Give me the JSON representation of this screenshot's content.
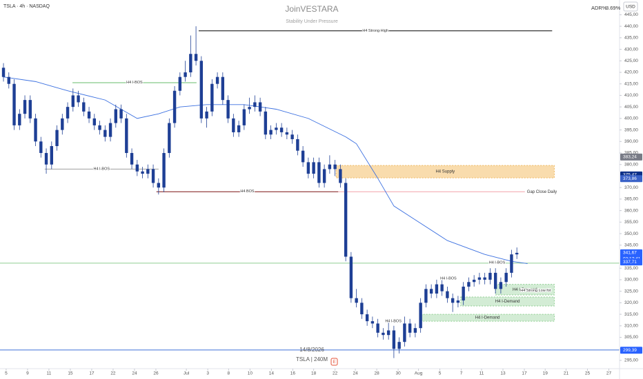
{
  "header": {
    "symbol": "TSLA · 4h · NASDAQ",
    "brand": "JoinVESTARA",
    "tagline": "Stability Under Pressure",
    "adr_label": "ADR%",
    "adr_value": "3.69%",
    "currency": "USD"
  },
  "footer": {
    "date": "14/8/2026",
    "caption": "TSLA | 240M",
    "event_marker": "E"
  },
  "chart_data": {
    "type": "candlestick",
    "up_color": "#1e3f95",
    "down_color": "#1e3f95",
    "open": [
      422,
      418,
      415,
      397,
      402,
      408,
      400,
      390,
      385,
      380,
      388,
      395,
      400,
      405,
      410,
      407,
      403,
      400,
      397,
      395,
      392,
      398,
      404,
      400,
      385,
      380,
      377,
      376,
      378,
      372,
      370,
      385,
      398,
      412,
      418,
      420,
      428,
      425,
      400,
      403,
      415,
      418,
      408,
      400,
      394,
      397,
      404,
      405,
      407,
      403,
      393,
      395,
      396,
      394,
      393,
      391,
      386,
      381,
      376,
      381,
      372,
      378,
      380,
      378,
      372,
      340,
      322,
      320,
      315,
      312,
      311,
      307,
      306,
      308,
      300,
      303,
      311,
      307,
      309,
      320,
      326,
      324,
      328,
      325,
      322,
      320,
      321,
      327,
      329,
      330,
      331,
      330,
      333,
      326,
      329,
      333,
      341
    ],
    "high": [
      424,
      420,
      417,
      404,
      410,
      410,
      402,
      392,
      387,
      390,
      397,
      402,
      407,
      413,
      412,
      409,
      405,
      402,
      399,
      397,
      400,
      406,
      406,
      402,
      387,
      382,
      379,
      380,
      380,
      374,
      387,
      400,
      414,
      420,
      425,
      436,
      440,
      427,
      405,
      417,
      420,
      420,
      410,
      402,
      399,
      406,
      409,
      410,
      409,
      405,
      397,
      398,
      398,
      396,
      395,
      393,
      388,
      383,
      383,
      383,
      380,
      384,
      382,
      380,
      374,
      342,
      326,
      322,
      317,
      314,
      313,
      309,
      312,
      310,
      305,
      314,
      313,
      311,
      322,
      328,
      328,
      330,
      330,
      327,
      324,
      323,
      329,
      331,
      332,
      333,
      333,
      335,
      335,
      331,
      335,
      343,
      344
    ],
    "low": [
      416,
      413,
      395,
      395,
      400,
      398,
      388,
      383,
      376,
      378,
      386,
      393,
      398,
      403,
      405,
      401,
      398,
      395,
      393,
      390,
      390,
      396,
      398,
      383,
      378,
      375,
      374,
      374,
      370,
      367,
      368,
      383,
      396,
      410,
      416,
      418,
      423,
      398,
      396,
      401,
      413,
      406,
      398,
      392,
      392,
      395,
      402,
      403,
      401,
      391,
      391,
      393,
      392,
      391,
      389,
      384,
      379,
      374,
      374,
      370,
      370,
      376,
      375,
      370,
      338,
      320,
      318,
      313,
      310,
      309,
      305,
      304,
      304,
      296,
      298,
      301,
      305,
      305,
      307,
      318,
      322,
      322,
      323,
      320,
      316,
      318,
      319,
      325,
      327,
      328,
      328,
      328,
      324,
      324,
      327,
      331,
      339
    ],
    "close": [
      418,
      415,
      397,
      402,
      408,
      400,
      390,
      385,
      380,
      388,
      395,
      400,
      405,
      410,
      407,
      403,
      400,
      397,
      395,
      392,
      398,
      404,
      400,
      385,
      380,
      377,
      376,
      378,
      372,
      370,
      385,
      398,
      412,
      418,
      420,
      428,
      425,
      400,
      403,
      415,
      418,
      408,
      400,
      394,
      397,
      404,
      405,
      407,
      403,
      393,
      395,
      396,
      394,
      393,
      391,
      386,
      381,
      376,
      381,
      372,
      378,
      380,
      378,
      372,
      340,
      322,
      320,
      315,
      312,
      311,
      307,
      306,
      308,
      300,
      303,
      311,
      307,
      309,
      320,
      326,
      324,
      328,
      325,
      322,
      320,
      321,
      327,
      329,
      330,
      331,
      330,
      333,
      326,
      329,
      333,
      341,
      341.67
    ],
    "ylim": [
      291.4,
      451.4
    ],
    "yticks": [
      {
        "value": 295,
        "label": "295,00"
      },
      {
        "value": 300,
        "label": "300,00"
      },
      {
        "value": 305,
        "label": "305,00"
      },
      {
        "value": 310,
        "label": "310,00"
      },
      {
        "value": 315,
        "label": "315,00"
      },
      {
        "value": 320,
        "label": "320,00"
      },
      {
        "value": 325,
        "label": "325,00"
      },
      {
        "value": 330,
        "label": "330,00"
      },
      {
        "value": 335,
        "label": "335,00"
      },
      {
        "value": 345,
        "label": "345,00"
      },
      {
        "value": 350,
        "label": "350,00"
      },
      {
        "value": 355,
        "label": "355,00"
      },
      {
        "value": 360,
        "label": "360,00"
      },
      {
        "value": 365,
        "label": "365,00"
      },
      {
        "value": 370,
        "label": "370,00"
      },
      {
        "value": 380,
        "label": "380,00"
      },
      {
        "value": 385,
        "label": "385,00"
      },
      {
        "value": 390,
        "label": "390,00"
      },
      {
        "value": 395,
        "label": "395,00"
      },
      {
        "value": 400,
        "label": "400,00"
      },
      {
        "value": 405,
        "label": "405,00"
      },
      {
        "value": 410,
        "label": "410,00"
      },
      {
        "value": 415,
        "label": "415,00"
      },
      {
        "value": 420,
        "label": "420,00"
      },
      {
        "value": 425,
        "label": "425,00"
      },
      {
        "value": 430,
        "label": "430,00"
      },
      {
        "value": 435,
        "label": "435,00"
      },
      {
        "value": 440,
        "label": "440,00"
      },
      {
        "value": 445,
        "label": "445,00"
      }
    ],
    "xlim": [
      -0.65,
      115.2
    ],
    "xticks": [
      {
        "value": 0.5,
        "label": "5"
      },
      {
        "value": 4.5,
        "label": "9"
      },
      {
        "value": 8.5,
        "label": "11"
      },
      {
        "value": 12.5,
        "label": "15"
      },
      {
        "value": 16.5,
        "label": "17"
      },
      {
        "value": 20.5,
        "label": "22"
      },
      {
        "value": 24.5,
        "label": "24"
      },
      {
        "value": 28.5,
        "label": "26"
      },
      {
        "value": 34.2,
        "label": "Jul"
      },
      {
        "value": 38.2,
        "label": "3"
      },
      {
        "value": 42.1,
        "label": "8"
      },
      {
        "value": 46.1,
        "label": "10"
      },
      {
        "value": 50.1,
        "label": "14"
      },
      {
        "value": 54.1,
        "label": "16"
      },
      {
        "value": 58,
        "label": "18"
      },
      {
        "value": 62,
        "label": "22"
      },
      {
        "value": 65.8,
        "label": "24"
      },
      {
        "value": 69.8,
        "label": "28"
      },
      {
        "value": 73.8,
        "label": "30"
      },
      {
        "value": 77.6,
        "label": "Aug"
      },
      {
        "value": 81.6,
        "label": "5"
      },
      {
        "value": 85.6,
        "label": "7"
      },
      {
        "value": 89.4,
        "label": "11"
      },
      {
        "value": 93.4,
        "label": "13"
      },
      {
        "value": 97.4,
        "label": "17"
      },
      {
        "value": 101.3,
        "label": "19"
      },
      {
        "value": 105.2,
        "label": "21"
      },
      {
        "value": 109.2,
        "label": "25"
      },
      {
        "value": 113.2,
        "label": "27"
      }
    ],
    "overlay_line": {
      "color": "#3a6fe0",
      "x": [
        0,
        6,
        12,
        19,
        25,
        29,
        33,
        38,
        45,
        51,
        57,
        64,
        66,
        70,
        73,
        77,
        83,
        90,
        95,
        98
      ],
      "values": [
        418,
        416,
        412,
        408,
        400,
        402,
        405,
        406,
        406,
        404,
        400,
        392,
        389,
        374,
        362,
        356,
        347,
        341,
        338,
        337
      ]
    },
    "levels": [
      {
        "label": "H4 Strong High",
        "value": 438,
        "x0": 36.5,
        "x1": 102.6,
        "color": "#000000"
      },
      {
        "label": "H4 I-BOS",
        "value": 415.5,
        "x0": 12.9,
        "x1": 36.1,
        "color": "#66bb6a"
      },
      {
        "label": "H4 I-BOS",
        "value": 378,
        "x0": 7.7,
        "x1": 29,
        "color": "#9e9e9e"
      },
      {
        "label": "H4 BOS",
        "value": 368.2,
        "x0": 28.6,
        "x1": 62.6,
        "color": "#7b1010"
      },
      {
        "label": "Gap Close Daily",
        "value": 368.2,
        "x0": 62.6,
        "x1": 97.5,
        "color": "#f4a0a8",
        "label_side": "right"
      },
      {
        "value": 337.2,
        "color": "#8fce91"
      },
      {
        "value": 299.5,
        "color": "#3f6fd8"
      }
    ],
    "zones": [
      {
        "label": "H4 Supply",
        "top": 379.6,
        "bottom": 374.2,
        "x0": 62.2,
        "x1": 103,
        "fill": "#f9dcad",
        "stroke": "#f0b860"
      },
      {
        "label": "H4 I-Demand",
        "top": 328,
        "bottom": 323.4,
        "x0": 92,
        "x1": 103,
        "fill": "#d3ecd5",
        "stroke": "#8fce91"
      },
      {
        "label": "H4 I-Demand",
        "top": 322.5,
        "bottom": 318.6,
        "x0": 85.5,
        "x1": 103,
        "fill": "#d3ecd5",
        "stroke": "#8fce91"
      },
      {
        "label": "H4 I-Demand",
        "top": 315,
        "bottom": 312,
        "x0": 78,
        "x1": 103,
        "fill": "#d3ecd5",
        "stroke": "#8fce91"
      }
    ],
    "markers": [
      {
        "text": "H4 I-BOS",
        "x": 83.2,
        "y": 330.5
      },
      {
        "text": "H4 I-BOS",
        "x": 72.9,
        "y": 312
      },
      {
        "text": "H4 I-BOS",
        "x": 92.3,
        "y": 337.5
      },
      {
        "text": "H4 Strong Low fot",
        "x": 99.5,
        "y": 325.4
      }
    ],
    "price_tags": [
      {
        "value": 383.24,
        "label": "383,24",
        "color": "#787b86"
      },
      {
        "value": 375.47,
        "label": "375,47",
        "color": "#0c2f86"
      },
      {
        "value": 373.86,
        "label": "373,86",
        "color": "#3a62c8"
      },
      {
        "value": 341.67,
        "label": "341,67",
        "color": "#2962ff"
      },
      {
        "value": 337.71,
        "label": "337,71",
        "color": "#2962ff"
      },
      {
        "value": 299.39,
        "label": "299,39",
        "color": "#2962ff"
      }
    ],
    "countdown": "03:17:41"
  }
}
